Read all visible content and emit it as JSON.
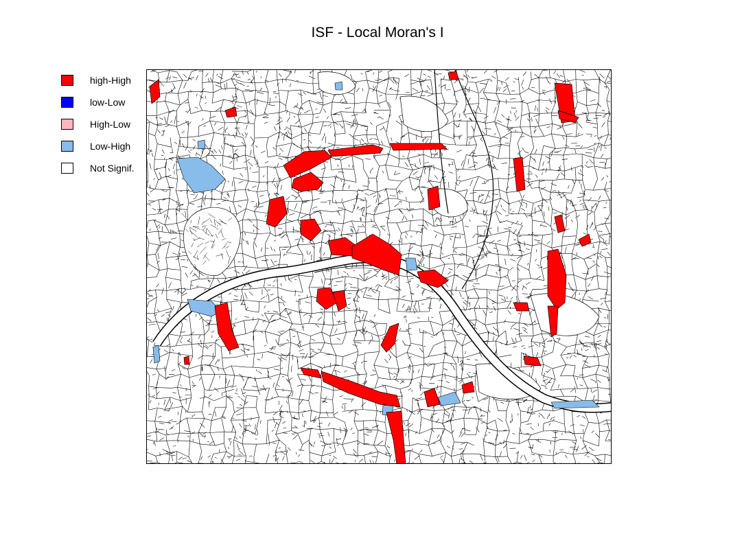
{
  "title": "ISF - Local Moran's I",
  "legend": {
    "items": [
      {
        "label": "high-High",
        "color": "#FF0000"
      },
      {
        "label": "low-Low",
        "color": "#0000FF"
      },
      {
        "label": "High-Low",
        "color": "#FFB6C1"
      },
      {
        "label": "Low-High",
        "color": "#87BCEB"
      },
      {
        "label": "Not Signif.",
        "color": "#FFFFFF"
      }
    ]
  },
  "map": {
    "border_color": "#000000",
    "background_color": "#FFFFFF"
  }
}
